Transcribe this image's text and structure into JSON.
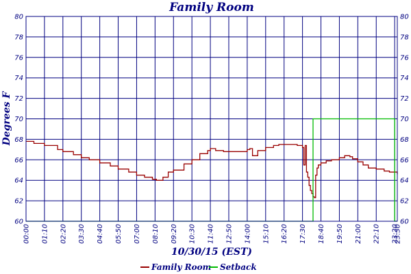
{
  "chart_data": {
    "type": "line",
    "title": "Family Room",
    "xlabel": "10/30/15 (EST)",
    "ylabel": "Degrees F",
    "ylim": [
      60,
      80
    ],
    "yticks": [
      60,
      62,
      64,
      66,
      68,
      70,
      72,
      74,
      76,
      78,
      80
    ],
    "xlim": [
      "00:00",
      "23:30"
    ],
    "x_tick_labels": [
      "00:00",
      "01:10",
      "02:20",
      "03:30",
      "04:40",
      "05:50",
      "07:00",
      "08:10",
      "09:20",
      "10:30",
      "11:40",
      "12:50",
      "14:00",
      "15:10",
      "16:20",
      "17:30",
      "18:40",
      "19:50",
      "21:00",
      "22:10",
      "23:20",
      "23:30"
    ],
    "grid": true,
    "legend_position": "bottom",
    "colors": {
      "frame": "#000080",
      "family_room": "#990000",
      "setback": "#00bb00",
      "text": "#000080"
    },
    "series": [
      {
        "name": "Family Room",
        "x": [
          "00:00",
          "00:30",
          "01:10",
          "02:00",
          "02:20",
          "03:00",
          "03:30",
          "04:00",
          "04:40",
          "05:20",
          "05:50",
          "06:30",
          "07:00",
          "07:30",
          "08:00",
          "08:15",
          "08:40",
          "09:00",
          "09:20",
          "10:00",
          "10:30",
          "11:00",
          "11:30",
          "11:40",
          "12:00",
          "12:30",
          "12:50",
          "13:30",
          "14:00",
          "14:10",
          "14:20",
          "14:40",
          "15:10",
          "15:40",
          "16:00",
          "16:20",
          "16:50",
          "17:10",
          "17:30",
          "17:35",
          "17:40",
          "17:45",
          "17:50",
          "17:55",
          "18:00",
          "18:05",
          "18:10",
          "18:15",
          "18:20",
          "18:25",
          "18:30",
          "18:40",
          "19:00",
          "19:20",
          "19:50",
          "20:10",
          "20:30",
          "20:40",
          "21:00",
          "21:20",
          "21:40",
          "22:10",
          "22:40",
          "23:00",
          "23:20",
          "23:30"
        ],
        "y": [
          67.8,
          67.6,
          67.4,
          67.0,
          66.8,
          66.5,
          66.2,
          66.0,
          65.7,
          65.4,
          65.1,
          64.8,
          64.5,
          64.3,
          64.1,
          64.0,
          64.3,
          64.8,
          65.0,
          65.6,
          66.0,
          66.6,
          66.9,
          67.1,
          66.9,
          66.8,
          66.8,
          66.8,
          67.0,
          67.1,
          66.4,
          66.9,
          67.2,
          67.4,
          67.5,
          67.5,
          67.5,
          67.4,
          67.2,
          65.5,
          67.4,
          64.8,
          64.3,
          63.5,
          63.0,
          62.7,
          62.4,
          62.3,
          64.5,
          65.2,
          65.5,
          65.7,
          65.9,
          66.0,
          66.2,
          66.4,
          66.3,
          66.1,
          65.8,
          65.5,
          65.2,
          65.1,
          64.9,
          64.8,
          64.8,
          64.6
        ]
      },
      {
        "name": "Setback",
        "x": [
          "00:00",
          "18:00",
          "18:00",
          "18:10",
          "18:10",
          "23:20",
          "23:20",
          "23:30"
        ],
        "y": [
          60,
          60,
          60,
          60,
          70,
          70,
          60,
          60
        ]
      }
    ]
  }
}
